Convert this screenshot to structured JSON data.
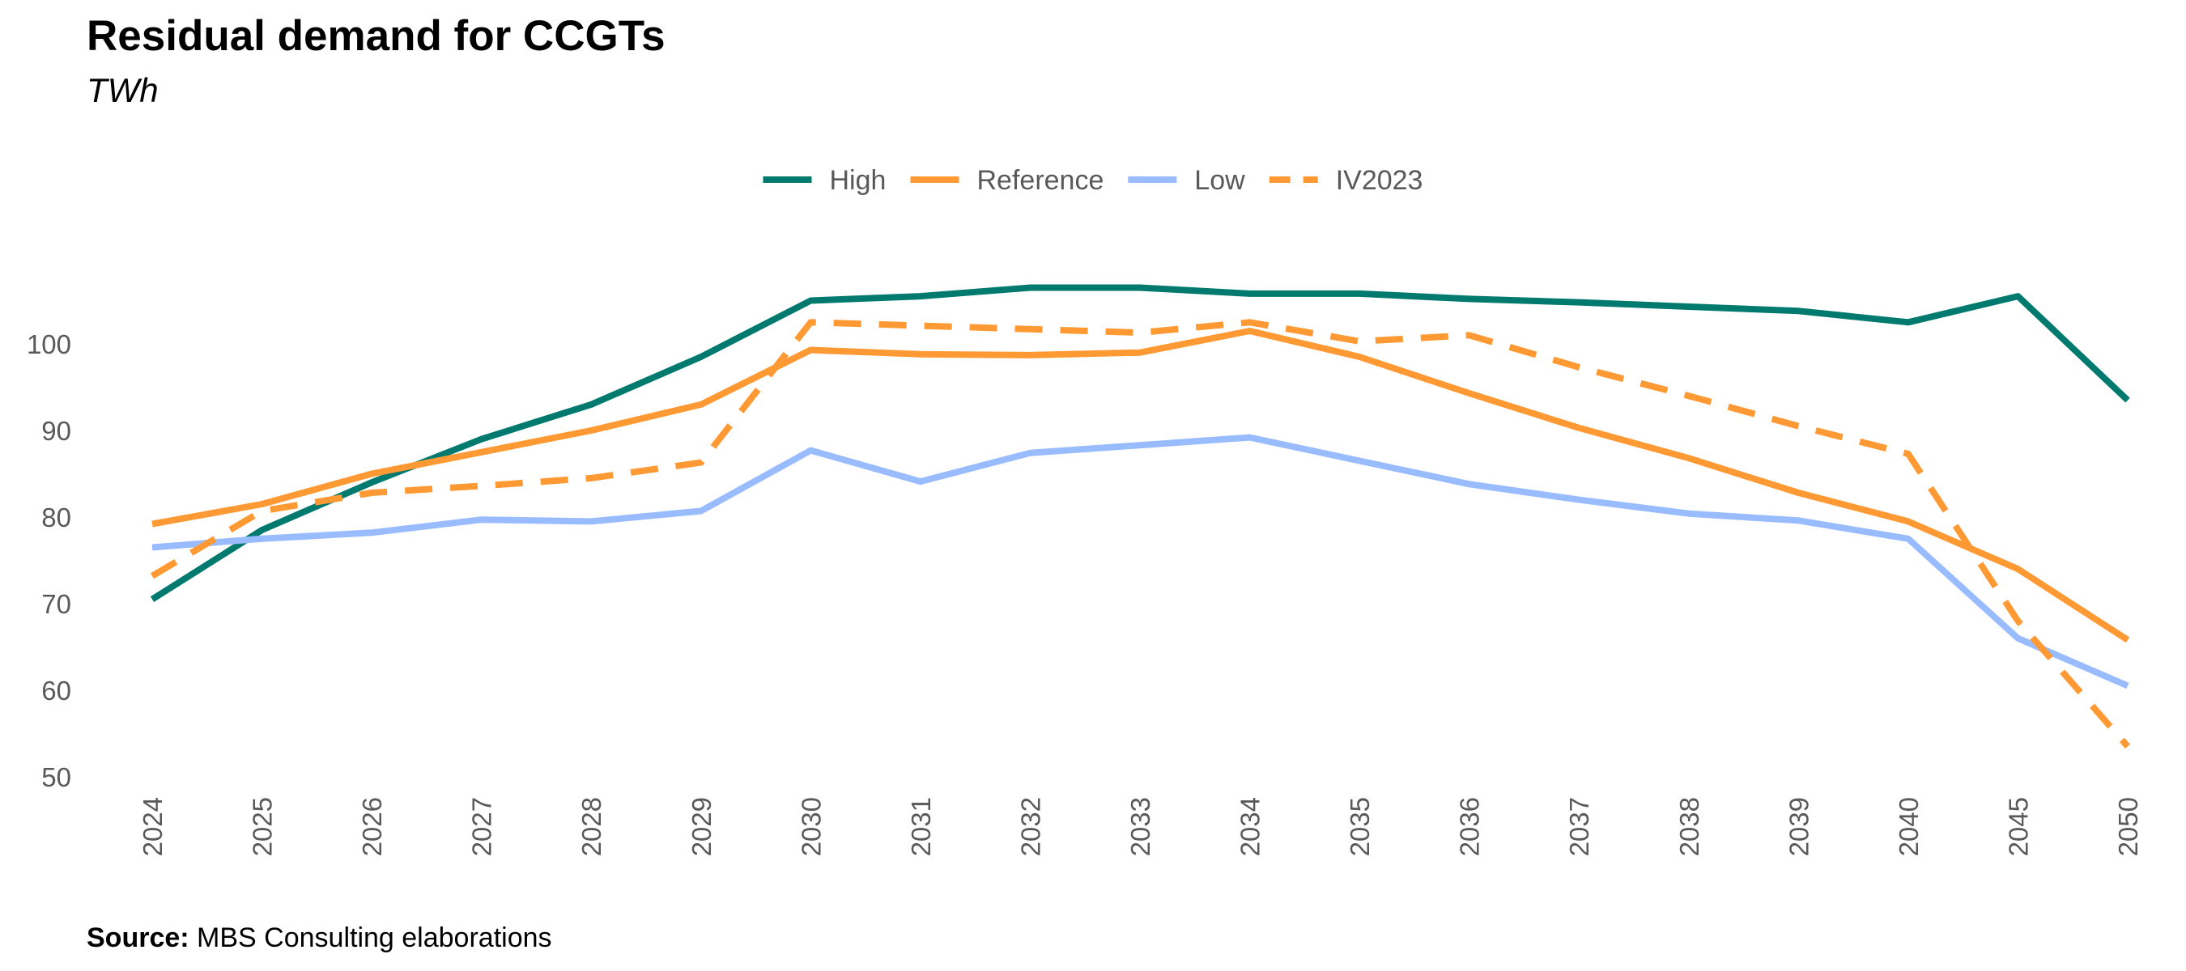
{
  "chart_data": {
    "type": "line",
    "title": "Residual demand for CCGTs",
    "subtitle": "TWh",
    "source_label": "Source:",
    "source_text": "MBS Consulting elaborations",
    "categories": [
      "2024",
      "2025",
      "2026",
      "2027",
      "2028",
      "2029",
      "2030",
      "2031",
      "2032",
      "2033",
      "2034",
      "2035",
      "2036",
      "2037",
      "2038",
      "2039",
      "2040",
      "2045",
      "2050"
    ],
    "yticks": [
      50,
      60,
      70,
      80,
      90,
      100
    ],
    "ylim": [
      50,
      110
    ],
    "legend_position": "top-center",
    "series": [
      {
        "name": "High",
        "color": "#007A6E",
        "dash": "solid",
        "values": [
          70.5,
          78.5,
          84,
          89,
          93,
          98.5,
          105,
          105.5,
          106.5,
          106.5,
          105.8,
          105.8,
          105.2,
          104.8,
          104.3,
          103.8,
          102.5,
          105.5,
          93.5
        ]
      },
      {
        "name": "Reference",
        "color": "#FF9933",
        "dash": "solid",
        "values": [
          79.2,
          81.5,
          85,
          87.5,
          90,
          93,
          99.3,
          98.8,
          98.7,
          99,
          101.5,
          98.5,
          94.3,
          90.3,
          86.8,
          82.8,
          79.5,
          74,
          65.8
        ]
      },
      {
        "name": "Low",
        "color": "#99BBFF",
        "dash": "solid",
        "values": [
          76.5,
          77.5,
          78.2,
          79.7,
          79.5,
          80.7,
          87.7,
          84.1,
          87.4,
          88.3,
          89.2,
          86.5,
          83.8,
          82,
          80.4,
          79.6,
          77.5,
          66,
          60.5
        ]
      },
      {
        "name": "IV2023",
        "color": "#FF9933",
        "dash": "dashed",
        "values": [
          73.2,
          80.7,
          82.8,
          83.6,
          84.5,
          86.3,
          102.5,
          102.1,
          101.7,
          101.3,
          102.5,
          100.3,
          101,
          97.3,
          94,
          90.5,
          87.3,
          68,
          53.5
        ]
      }
    ]
  }
}
